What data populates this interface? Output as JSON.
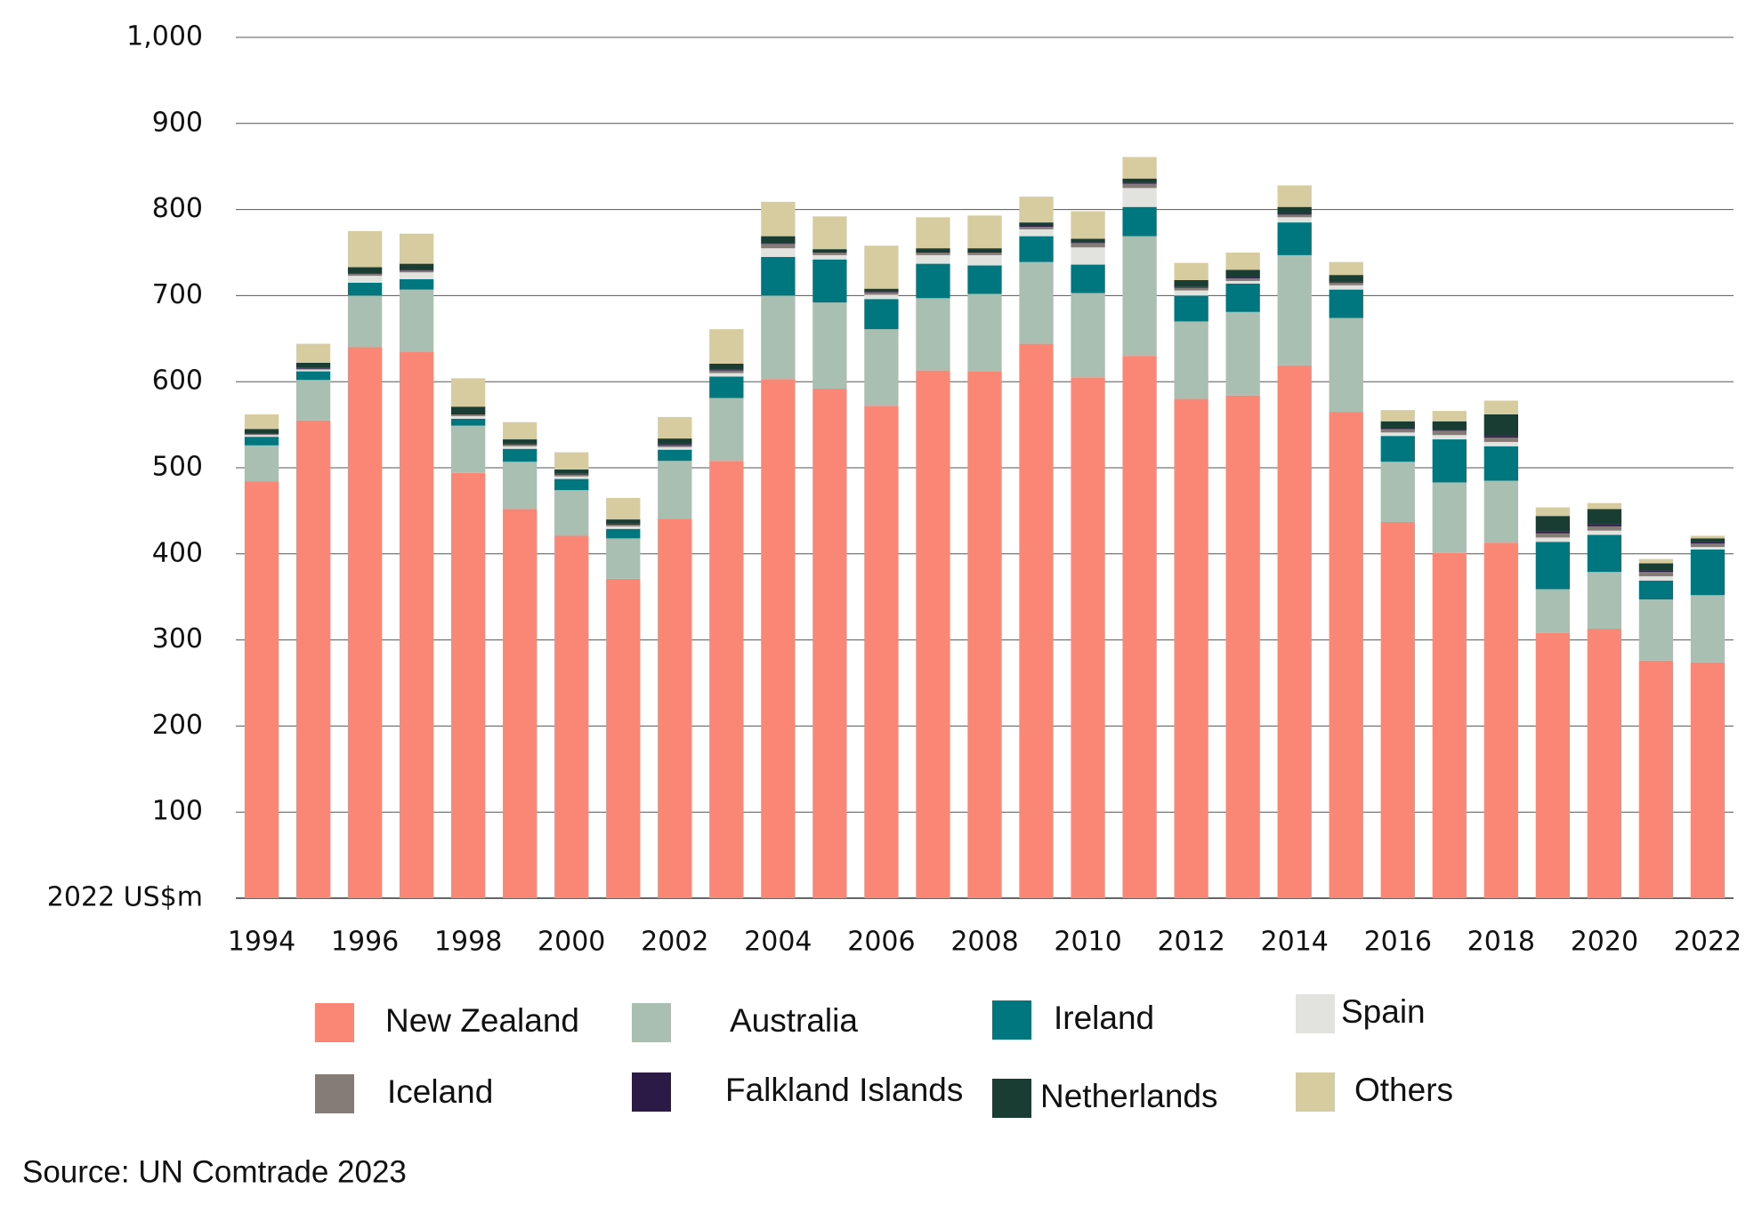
{
  "chart_data": {
    "type": "stacked-bar",
    "categories": [
      "1994",
      null,
      "1996",
      null,
      "1998",
      null,
      "2000",
      null,
      "2002",
      null,
      "2004",
      null,
      "2006",
      null,
      "2008",
      null,
      "2010",
      null,
      "2012",
      null,
      "2014",
      null,
      "2016",
      null,
      "2018",
      null,
      "2020",
      null,
      "2022"
    ],
    "series": [
      {
        "name": "New Zealand",
        "color": "#fa8775",
        "values": [
          484,
          555,
          640,
          635,
          494,
          452,
          421,
          371,
          441,
          508,
          603,
          592,
          572,
          613,
          612,
          644,
          605,
          630,
          580,
          584,
          619,
          565,
          437,
          401,
          413,
          308,
          313,
          276,
          274
        ]
      },
      {
        "name": "Australia",
        "color": "#a8bfb2",
        "values": [
          42,
          47,
          60,
          72,
          55,
          55,
          53,
          47,
          67,
          73,
          97,
          100,
          89,
          84,
          90,
          95,
          98,
          139,
          90,
          97,
          128,
          109,
          70,
          82,
          72,
          51,
          66,
          71,
          78
        ]
      },
      {
        "name": "Ireland",
        "color": "#00777e",
        "values": [
          10,
          10,
          15,
          12,
          8,
          15,
          13,
          11,
          13,
          25,
          45,
          50,
          35,
          40,
          33,
          30,
          33,
          34,
          30,
          33,
          38,
          33,
          30,
          50,
          40,
          55,
          43,
          22,
          53
        ]
      },
      {
        "name": "Spain",
        "color": "#e2e2df",
        "values": [
          2,
          2,
          8,
          8,
          3,
          3,
          3,
          3,
          3,
          4,
          10,
          5,
          5,
          10,
          12,
          8,
          20,
          22,
          6,
          3,
          6,
          5,
          4,
          5,
          5,
          5,
          5,
          5,
          3
        ]
      },
      {
        "name": "Iceland",
        "color": "#857b77",
        "values": [
          1,
          1,
          2,
          2,
          2,
          2,
          2,
          2,
          2,
          3,
          5,
          3,
          3,
          3,
          3,
          3,
          5,
          5,
          3,
          3,
          3,
          3,
          4,
          5,
          5,
          5,
          5,
          5,
          4
        ]
      },
      {
        "name": "Falkland Islands",
        "color": "#2b1a45",
        "values": [
          1,
          1,
          1,
          1,
          1,
          1,
          1,
          1,
          1,
          1,
          1,
          1,
          1,
          1,
          1,
          1,
          1,
          1,
          1,
          1,
          1,
          1,
          1,
          1,
          2,
          2,
          2,
          2,
          2
        ]
      },
      {
        "name": "Netherlands",
        "color": "#1a3d33",
        "values": [
          5,
          6,
          7,
          7,
          8,
          5,
          5,
          5,
          7,
          7,
          8,
          3,
          3,
          4,
          4,
          4,
          4,
          5,
          8,
          9,
          8,
          8,
          8,
          10,
          25,
          18,
          18,
          8,
          4
        ]
      },
      {
        "name": "Others",
        "color": "#d6cc9f",
        "values": [
          17,
          22,
          42,
          35,
          33,
          20,
          20,
          25,
          25,
          40,
          40,
          38,
          50,
          36,
          38,
          30,
          32,
          25,
          20,
          20,
          25,
          15,
          13,
          12,
          16,
          10,
          7,
          5,
          3
        ]
      }
    ],
    "ylim": [
      0,
      1000
    ],
    "yticks": [
      {
        "value": 0,
        "label": "2022 US$m"
      },
      100,
      200,
      300,
      400,
      500,
      600,
      700,
      800,
      900,
      {
        "value": 1000,
        "label": "1,000"
      }
    ],
    "grid": true,
    "source": "Source: UN Comtrade 2023"
  }
}
